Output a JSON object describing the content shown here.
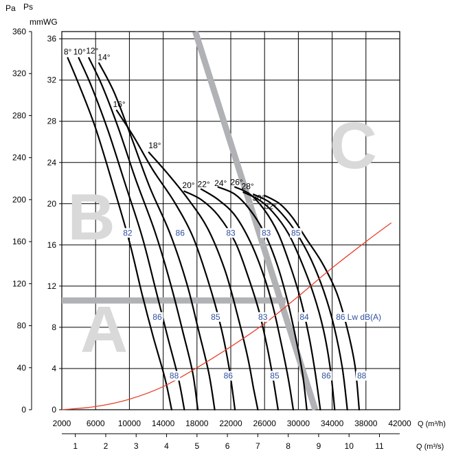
{
  "chart_data": {
    "type": "line",
    "title": "",
    "left_axis": {
      "unit_pa": "Pa",
      "label_ps": "Ps",
      "ticks": [
        0,
        40,
        80,
        120,
        160,
        200,
        240,
        280,
        320,
        360
      ],
      "ylim": [
        0,
        360
      ]
    },
    "inner_axis": {
      "unit": "mmWG",
      "ticks": [
        0,
        4,
        8,
        12,
        16,
        20,
        24,
        28,
        32,
        36
      ]
    },
    "x_axis_flow_m3h": {
      "label": "Q (m³/h)",
      "ticks": [
        2000,
        6000,
        10000,
        14000,
        18000,
        22000,
        26000,
        30000,
        34000,
        38000,
        42000
      ],
      "xlim": [
        2000,
        42000
      ]
    },
    "x_axis_flow_m3s": {
      "label": "Q (m³/s)",
      "ticks": [
        1,
        2,
        3,
        4,
        5,
        6,
        7,
        8,
        9,
        10,
        11
      ]
    },
    "blade_angle_curves": [
      {
        "name": "8°",
        "points": [
          [
            2700,
            335
          ],
          [
            4000,
            310
          ],
          [
            6000,
            268
          ],
          [
            8200,
            210
          ],
          [
            10000,
            160
          ],
          [
            11500,
            110
          ],
          [
            12800,
            70
          ],
          [
            14200,
            30
          ],
          [
            15000,
            0
          ]
        ]
      },
      {
        "name": "10°",
        "points": [
          [
            4000,
            335
          ],
          [
            5500,
            308
          ],
          [
            7500,
            265
          ],
          [
            9500,
            215
          ],
          [
            11500,
            165
          ],
          [
            13000,
            118
          ],
          [
            14500,
            70
          ],
          [
            15800,
            30
          ],
          [
            16500,
            0
          ]
        ]
      },
      {
        "name": "12°",
        "points": [
          [
            5200,
            335
          ],
          [
            6800,
            308
          ],
          [
            8700,
            268
          ],
          [
            10800,
            218
          ],
          [
            13000,
            170
          ],
          [
            14800,
            122
          ],
          [
            16300,
            75
          ],
          [
            17500,
            35
          ],
          [
            18100,
            0
          ]
        ]
      },
      {
        "name": "14°",
        "points": [
          [
            6400,
            330
          ],
          [
            8200,
            302
          ],
          [
            10200,
            260
          ],
          [
            12400,
            212
          ],
          [
            14800,
            168
          ],
          [
            16800,
            120
          ],
          [
            18200,
            75
          ],
          [
            19400,
            35
          ],
          [
            20100,
            0
          ]
        ]
      },
      {
        "name": "16°",
        "points": [
          [
            8500,
            285
          ],
          [
            10500,
            260
          ],
          [
            12800,
            228
          ],
          [
            15300,
            198
          ],
          [
            17500,
            165
          ],
          [
            19300,
            123
          ],
          [
            20800,
            80
          ],
          [
            21800,
            40
          ],
          [
            22500,
            0
          ]
        ]
      },
      {
        "name": "18°",
        "points": [
          [
            12300,
            245
          ],
          [
            14500,
            225
          ],
          [
            17000,
            200
          ],
          [
            19300,
            172
          ],
          [
            21300,
            133
          ],
          [
            22800,
            90
          ],
          [
            24000,
            50
          ],
          [
            24700,
            20
          ],
          [
            25200,
            0
          ]
        ]
      },
      {
        "name": "20°",
        "points": [
          [
            16500,
            208
          ],
          [
            18500,
            200
          ],
          [
            20500,
            185
          ],
          [
            22500,
            160
          ],
          [
            24000,
            128
          ],
          [
            25300,
            95
          ],
          [
            26300,
            60
          ],
          [
            27000,
            30
          ],
          [
            27600,
            0
          ]
        ]
      },
      {
        "name": "22°",
        "points": [
          [
            18500,
            210
          ],
          [
            20500,
            200
          ],
          [
            22500,
            185
          ],
          [
            24300,
            160
          ],
          [
            25800,
            130
          ],
          [
            27000,
            98
          ],
          [
            28000,
            62
          ],
          [
            28800,
            30
          ],
          [
            29400,
            0
          ]
        ]
      },
      {
        "name": "24°",
        "points": [
          [
            20500,
            212
          ],
          [
            22500,
            205
          ],
          [
            24300,
            190
          ],
          [
            26000,
            168
          ],
          [
            27500,
            138
          ],
          [
            28700,
            104
          ],
          [
            29700,
            68
          ],
          [
            30500,
            34
          ],
          [
            31000,
            0
          ]
        ]
      },
      {
        "name": "26°",
        "points": [
          [
            22500,
            212
          ],
          [
            24300,
            205
          ],
          [
            26000,
            190
          ],
          [
            27600,
            168
          ],
          [
            29000,
            138
          ],
          [
            30300,
            104
          ],
          [
            31300,
            68
          ],
          [
            32000,
            35
          ],
          [
            32600,
            0
          ]
        ]
      },
      {
        "name": "28°",
        "points": [
          [
            23500,
            207
          ],
          [
            25300,
            200
          ],
          [
            27000,
            188
          ],
          [
            28800,
            168
          ],
          [
            30300,
            142
          ],
          [
            31800,
            110
          ],
          [
            33000,
            75
          ],
          [
            33800,
            38
          ],
          [
            34300,
            0
          ]
        ]
      },
      {
        "name": "30°",
        "points": [
          [
            24700,
            205
          ],
          [
            26500,
            198
          ],
          [
            28000,
            187
          ],
          [
            29800,
            168
          ],
          [
            31500,
            143
          ],
          [
            33000,
            113
          ],
          [
            34200,
            80
          ],
          [
            35200,
            40
          ],
          [
            35800,
            0
          ]
        ]
      },
      {
        "name": "32°",
        "points": [
          [
            26000,
            204
          ],
          [
            27800,
            196
          ],
          [
            29300,
            183
          ],
          [
            31000,
            162
          ],
          [
            32800,
            140
          ],
          [
            34500,
            112
          ],
          [
            35700,
            80
          ],
          [
            36700,
            42
          ],
          [
            37200,
            0
          ]
        ]
      }
    ],
    "system_curve": {
      "color": "#e8402b",
      "points": [
        [
          2000,
          0
        ],
        [
          6000,
          3
        ],
        [
          10000,
          10
        ],
        [
          14000,
          22
        ],
        [
          18000,
          40
        ],
        [
          22000,
          60
        ],
        [
          26000,
          82
        ],
        [
          30000,
          108
        ],
        [
          34000,
          135
        ],
        [
          38000,
          160
        ],
        [
          41000,
          178
        ]
      ]
    },
    "sound_level_labels": [
      {
        "text": "82",
        "q": 9800,
        "p": 167
      },
      {
        "text": "86",
        "q": 16000,
        "p": 167
      },
      {
        "text": "83",
        "q": 22000,
        "p": 167
      },
      {
        "text": "83",
        "q": 26200,
        "p": 167
      },
      {
        "text": "85",
        "q": 29700,
        "p": 167
      },
      {
        "text": "86",
        "q": 13300,
        "p": 87
      },
      {
        "text": "85",
        "q": 20200,
        "p": 87
      },
      {
        "text": "83",
        "q": 25800,
        "p": 87
      },
      {
        "text": "84",
        "q": 30700,
        "p": 87
      },
      {
        "text": "86",
        "q": 35000,
        "p": 87
      },
      {
        "text": "Lw dB(A)",
        "q": 37800,
        "p": 87
      },
      {
        "text": "88",
        "q": 15300,
        "p": 31
      },
      {
        "text": "86",
        "q": 21700,
        "p": 31
      },
      {
        "text": "85",
        "q": 27200,
        "p": 31
      },
      {
        "text": "86",
        "q": 33300,
        "p": 31
      },
      {
        "text": "88",
        "q": 37500,
        "p": 31
      }
    ],
    "angle_labels": [
      {
        "text": "8°",
        "q": 2700,
        "p": 338
      },
      {
        "text": "10°",
        "q": 4100,
        "p": 338
      },
      {
        "text": "12°",
        "q": 5600,
        "p": 339
      },
      {
        "text": "14°",
        "q": 7000,
        "p": 333
      },
      {
        "text": "16°",
        "q": 8800,
        "p": 288
      },
      {
        "text": "18°",
        "q": 13000,
        "p": 249
      },
      {
        "text": "20°",
        "q": 17000,
        "p": 211
      },
      {
        "text": "22°",
        "q": 18800,
        "p": 212
      },
      {
        "text": "24°",
        "q": 20800,
        "p": 213
      },
      {
        "text": "26°",
        "q": 22700,
        "p": 214
      },
      {
        "text": "28°",
        "q": 24000,
        "p": 210
      },
      {
        "text": "30°",
        "q": 25300,
        "p": 199
      },
      {
        "text": "32°",
        "q": 26700,
        "p": 191
      }
    ],
    "zones": [
      {
        "text": "A",
        "q": 7000,
        "p": 55
      },
      {
        "text": "B",
        "q": 5500,
        "p": 162
      },
      {
        "text": "C",
        "q": 36500,
        "p": 230
      }
    ],
    "zone_boundaries": {
      "color": "#b0b2b5",
      "horizontal": [
        [
          2000,
          104
        ],
        [
          28500,
          104
        ]
      ],
      "diagonal": [
        [
          17800,
          360
        ],
        [
          32000,
          0
        ]
      ]
    },
    "grid": true
  }
}
